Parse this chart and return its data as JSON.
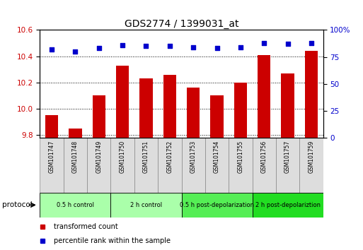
{
  "title": "GDS2774 / 1399031_at",
  "categories": [
    "GSM101747",
    "GSM101748",
    "GSM101749",
    "GSM101750",
    "GSM101751",
    "GSM101752",
    "GSM101753",
    "GSM101754",
    "GSM101755",
    "GSM101756",
    "GSM101757",
    "GSM101759"
  ],
  "bar_values": [
    9.95,
    9.85,
    10.1,
    10.33,
    10.23,
    10.26,
    10.16,
    10.1,
    10.2,
    10.41,
    10.27,
    10.44
  ],
  "scatter_values": [
    82,
    80,
    83,
    86,
    85,
    85,
    84,
    83,
    84,
    88,
    87,
    88
  ],
  "bar_color": "#cc0000",
  "scatter_color": "#0000cc",
  "ylim_left": [
    9.78,
    10.6
  ],
  "ylim_right": [
    0,
    100
  ],
  "yticks_left": [
    9.8,
    10.0,
    10.2,
    10.4,
    10.6
  ],
  "yticks_right": [
    0,
    25,
    50,
    75,
    100
  ],
  "ytick_labels_right": [
    "0",
    "25",
    "50",
    "75",
    "100%"
  ],
  "protocol_groups": [
    {
      "label": "0.5 h control",
      "start": 0,
      "end": 3,
      "color": "#aaffaa"
    },
    {
      "label": "2 h control",
      "start": 3,
      "end": 6,
      "color": "#aaffaa"
    },
    {
      "label": "0.5 h post-depolarization",
      "start": 6,
      "end": 9,
      "color": "#55ee55"
    },
    {
      "label": "2 h post-depolariztion",
      "start": 9,
      "end": 12,
      "color": "#22dd22"
    }
  ],
  "legend_items": [
    {
      "label": "transformed count",
      "color": "#cc0000",
      "marker": "s"
    },
    {
      "label": "percentile rank within the sample",
      "color": "#0000cc",
      "marker": "s"
    }
  ],
  "left_color": "#cc0000",
  "right_color": "#0000cc",
  "label_box_color": "#dddddd",
  "label_box_edge": "#888888"
}
